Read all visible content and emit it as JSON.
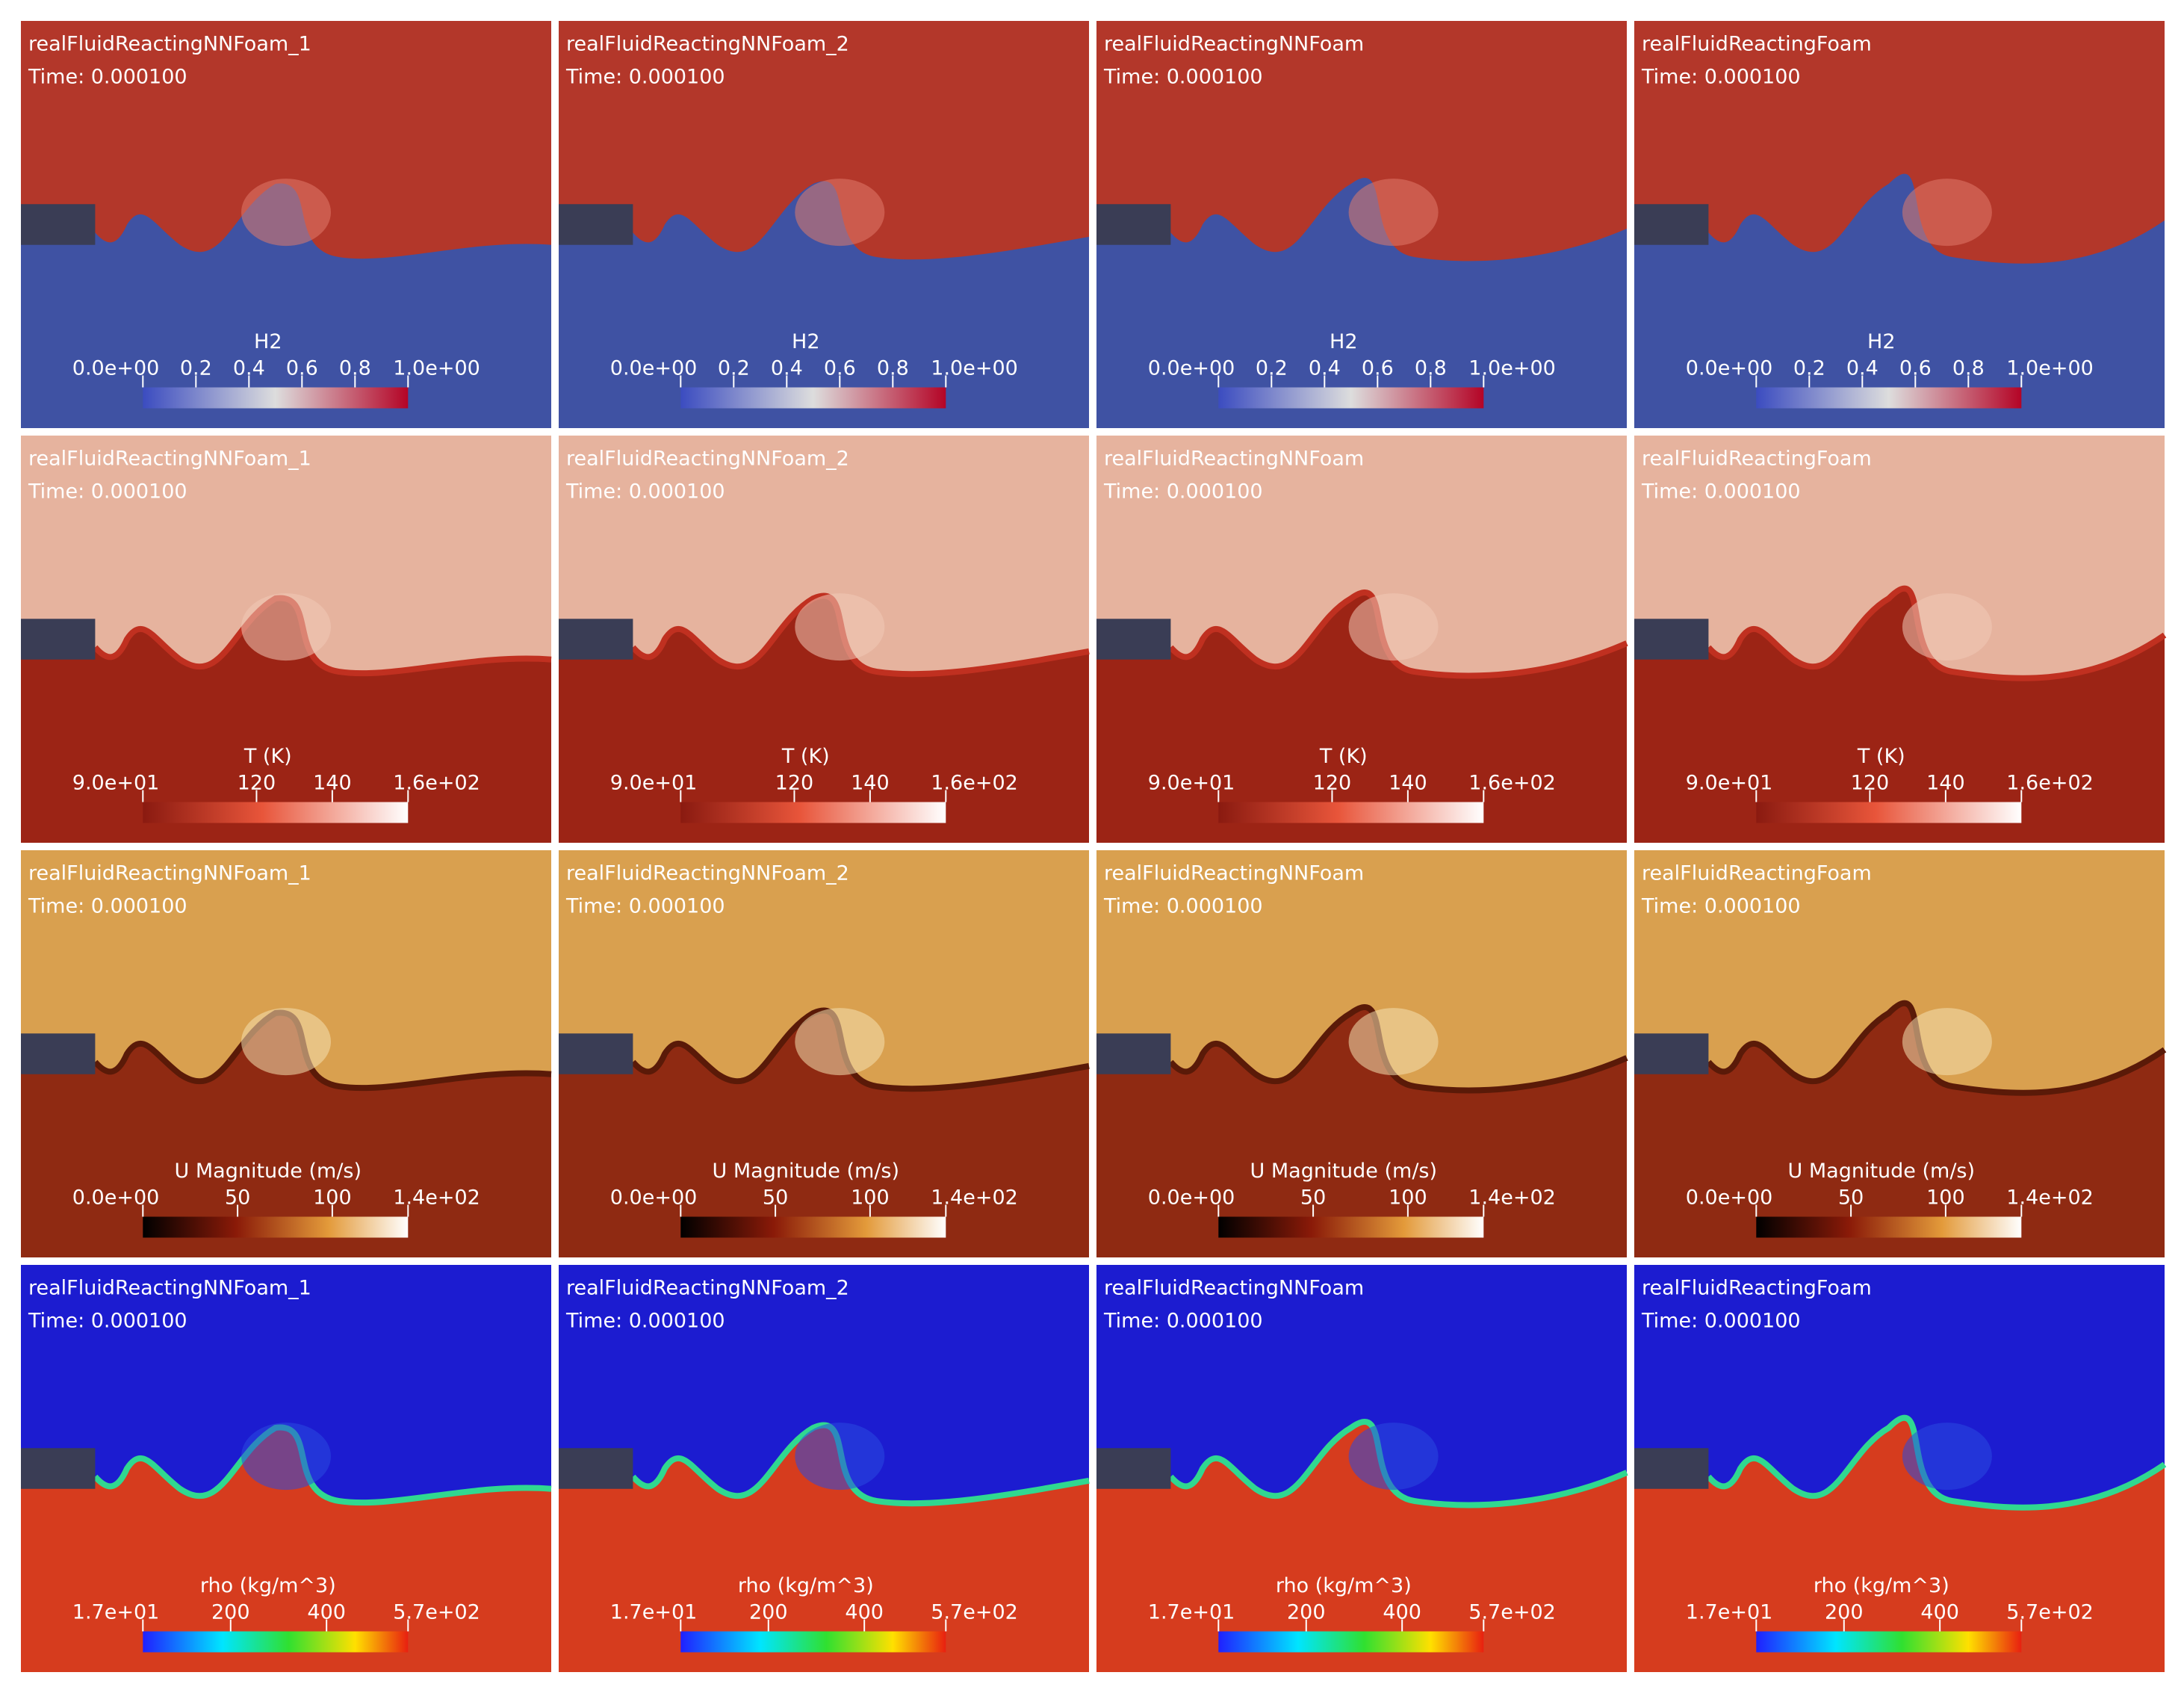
{
  "rows": [
    {
      "panels": [
        {
          "title": "realFluidReactingNNFoam_1",
          "time": "Time: 0.000100",
          "colorbar": {
            "title": "H2",
            "ticks": [
              "0.0e+00",
              "0.2",
              "0.4",
              "0.6",
              "0.8",
              "1.0e+00"
            ]
          }
        },
        {
          "title": "realFluidReactingNNFoam_2",
          "time": "Time: 0.000100",
          "colorbar": {
            "title": "H2",
            "ticks": [
              "0.0e+00",
              "0.2",
              "0.4",
              "0.6",
              "0.8",
              "1.0e+00"
            ]
          }
        },
        {
          "title": "realFluidReactingNNFoam",
          "time": "Time: 0.000100",
          "colorbar": {
            "title": "H2",
            "ticks": [
              "0.0e+00",
              "0.2",
              "0.4",
              "0.6",
              "0.8",
              "1.0e+00"
            ]
          }
        },
        {
          "title": "realFluidReactingFoam",
          "time": "Time: 0.000100",
          "colorbar": {
            "title": "H2",
            "ticks": [
              "0.0e+00",
              "0.2",
              "0.4",
              "0.6",
              "0.8",
              "1.0e+00"
            ]
          }
        }
      ]
    },
    {
      "panels": [
        {
          "title": "realFluidReactingNNFoam_1",
          "time": "Time: 0.000100",
          "colorbar": {
            "title": "T (K)",
            "ticks": [
              "9.0e+01",
              "120",
              "140",
              "1.6e+02"
            ]
          }
        },
        {
          "title": "realFluidReactingNNFoam_2",
          "time": "Time: 0.000100",
          "colorbar": {
            "title": "T (K)",
            "ticks": [
              "9.0e+01",
              "120",
              "140",
              "1.6e+02"
            ]
          }
        },
        {
          "title": "realFluidReactingNNFoam",
          "time": "Time: 0.000100",
          "colorbar": {
            "title": "T (K)",
            "ticks": [
              "9.0e+01",
              "120",
              "140",
              "1.6e+02"
            ]
          }
        },
        {
          "title": "realFluidReactingFoam",
          "time": "Time: 0.000100",
          "colorbar": {
            "title": "T (K)",
            "ticks": [
              "9.0e+01",
              "120",
              "140",
              "1.6e+02"
            ]
          }
        }
      ]
    },
    {
      "panels": [
        {
          "title": "realFluidReactingNNFoam_1",
          "time": "Time: 0.000100",
          "colorbar": {
            "title": "U Magnitude (m/s)",
            "ticks": [
              "0.0e+00",
              "50",
              "100",
              "1.4e+02"
            ]
          }
        },
        {
          "title": "realFluidReactingNNFoam_2",
          "time": "Time: 0.000100",
          "colorbar": {
            "title": "U Magnitude (m/s)",
            "ticks": [
              "0.0e+00",
              "50",
              "100",
              "1.4e+02"
            ]
          }
        },
        {
          "title": "realFluidReactingNNFoam",
          "time": "Time: 0.000100",
          "colorbar": {
            "title": "U Magnitude (m/s)",
            "ticks": [
              "0.0e+00",
              "50",
              "100",
              "1.4e+02"
            ]
          }
        },
        {
          "title": "realFluidReactingFoam",
          "time": "Time: 0.000100",
          "colorbar": {
            "title": "U Magnitude (m/s)",
            "ticks": [
              "0.0e+00",
              "50",
              "100",
              "1.4e+02"
            ]
          }
        }
      ]
    },
    {
      "panels": [
        {
          "title": "realFluidReactingNNFoam_1",
          "time": "Time: 0.000100",
          "colorbar": {
            "title": "rho (kg/m^3)",
            "ticks": [
              "1.7e+01",
              "200",
              "400",
              "5.7e+02"
            ]
          }
        },
        {
          "title": "realFluidReactingNNFoam_2",
          "time": "Time: 0.000100",
          "colorbar": {
            "title": "rho (kg/m^3)",
            "ticks": [
              "1.7e+01",
              "200",
              "400",
              "5.7e+02"
            ]
          }
        },
        {
          "title": "realFluidReactingNNFoam",
          "time": "Time: 0.000100",
          "colorbar": {
            "title": "rho (kg/m^3)",
            "ticks": [
              "1.7e+01",
              "200",
              "400",
              "5.7e+02"
            ]
          }
        },
        {
          "title": "realFluidReactingFoam",
          "time": "Time: 0.000100",
          "colorbar": {
            "title": "rho (kg/m^3)",
            "ticks": [
              "1.7e+01",
              "200",
              "400",
              "5.7e+02"
            ]
          }
        }
      ]
    }
  ]
}
